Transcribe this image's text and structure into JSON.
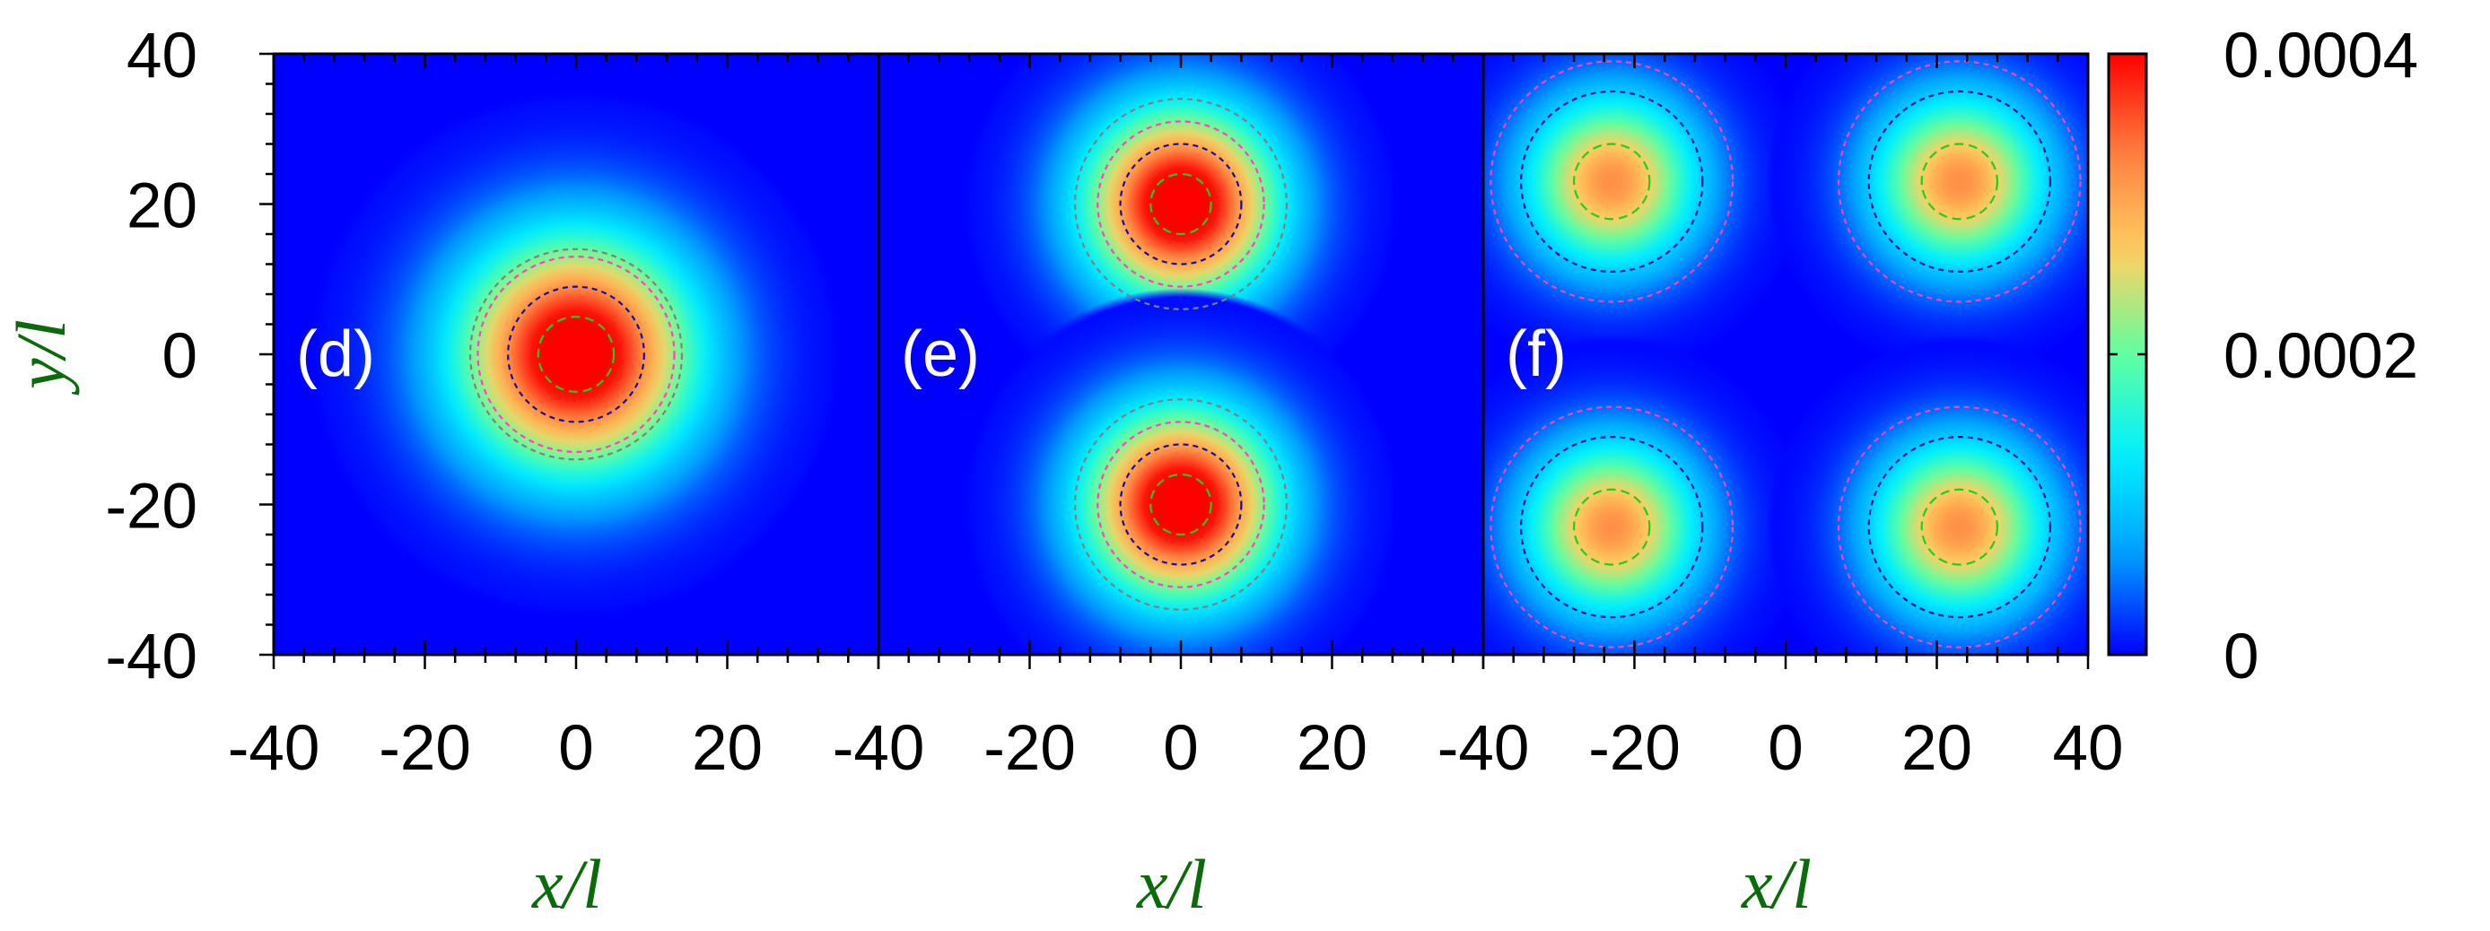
{
  "chart_data": {
    "type": "heatmap",
    "title": "",
    "xlabel": "x/l",
    "ylabel": "y/l",
    "xlim": [
      -40,
      40
    ],
    "ylim": [
      -40,
      40
    ],
    "x_ticks": [
      "-40",
      "-20",
      "0",
      "20",
      "40"
    ],
    "y_ticks": [
      "40",
      "20",
      "0",
      "-20",
      "-40"
    ],
    "colorbar": {
      "range": [
        0,
        0.0004
      ],
      "tick_labels": [
        "0.0004",
        "0.0002",
        "0"
      ],
      "colormap": [
        "#0000ff",
        "#00a0ff",
        "#00f0ff",
        "#60ffa0",
        "#ffd060",
        "#ff8040",
        "#ff0000"
      ]
    },
    "panels": [
      {
        "label": "(d)",
        "peak_value": 0.00045,
        "spread": 11,
        "peaks": [
          {
            "x": 0,
            "y": 0
          }
        ],
        "contour_radii": [
          5,
          9,
          13,
          14
        ]
      },
      {
        "label": "(e)",
        "peak_value": 0.00045,
        "spread": 9,
        "peaks": [
          {
            "x": 0,
            "y": 20
          },
          {
            "x": 0,
            "y": -20
          }
        ],
        "contour_radii": [
          4,
          8,
          11,
          14
        ]
      },
      {
        "label": "(f)",
        "peak_value": 0.00032,
        "spread": 8,
        "peaks": [
          {
            "x": -23,
            "y": 23
          },
          {
            "x": 23,
            "y": 23
          },
          {
            "x": -23,
            "y": -23
          },
          {
            "x": 23,
            "y": -23
          }
        ],
        "contour_radii": [
          5,
          12,
          16
        ]
      }
    ],
    "contour_colors": [
      "#22cc22",
      "#1010a0",
      "#ff40c0",
      "#808080"
    ]
  }
}
